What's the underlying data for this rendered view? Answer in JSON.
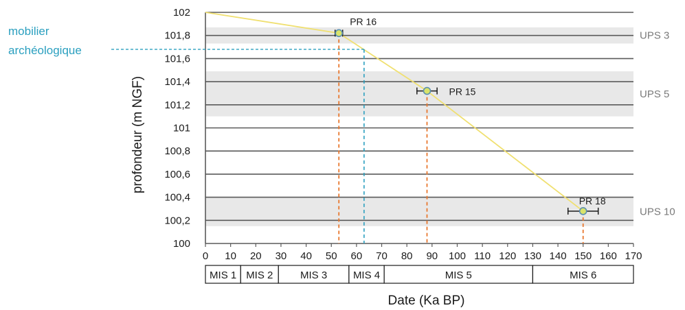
{
  "chart_data": {
    "type": "scatter",
    "title": "",
    "xlabel": "Date (Ka BP)",
    "ylabel": "profondeur (m NGF)",
    "xlim": [
      0,
      170
    ],
    "ylim": [
      100,
      102
    ],
    "x_ticks": [
      "0",
      "10",
      "20",
      "30",
      "40",
      "50",
      "60",
      "70",
      "80",
      "90",
      "100",
      "110",
      "120",
      "130",
      "140",
      "150",
      "160",
      "170"
    ],
    "y_ticks": [
      "100",
      "100,2",
      "100,4",
      "100,6",
      "100,8",
      "101",
      "101,2",
      "101,4",
      "101,6",
      "101,8",
      "102"
    ],
    "grid": "horizontal",
    "points": [
      {
        "label": "PR 16",
        "x": 53,
        "y": 101.82,
        "xerr": 1.5
      },
      {
        "label": "PR 15",
        "x": 88,
        "y": 101.32,
        "xerr": 4
      },
      {
        "label": "PR 18",
        "x": 150,
        "y": 100.28,
        "xerr": 6
      }
    ],
    "age_model_line": [
      {
        "x": 0,
        "y": 102
      },
      {
        "x": 53,
        "y": 101.82
      },
      {
        "x": 88,
        "y": 101.32
      },
      {
        "x": 150,
        "y": 100.28
      }
    ],
    "ups_bands": [
      {
        "label": "UPS 3",
        "y_from": 101.73,
        "y_to": 101.87
      },
      {
        "label": "UPS 5",
        "y_from": 101.1,
        "y_to": 101.49
      },
      {
        "label": "UPS 10",
        "y_from": 100.15,
        "y_to": 100.4
      }
    ],
    "mis_stages": [
      {
        "label": "MIS 1",
        "from": 0,
        "to": 14
      },
      {
        "label": "MIS 2",
        "from": 14,
        "to": 29
      },
      {
        "label": "MIS 3",
        "from": 29,
        "to": 57
      },
      {
        "label": "MIS 4",
        "from": 57,
        "to": 71
      },
      {
        "label": "MIS 5",
        "from": 71,
        "to": 130
      },
      {
        "label": "MIS 6",
        "from": 130,
        "to": 170
      }
    ],
    "annotation": {
      "text_line1": "mobilier",
      "text_line2": "archéologique",
      "x": 63,
      "y": 101.68
    },
    "colors": {
      "line": "#f0e070",
      "point_fill": "#d9e36a",
      "point_stroke": "#5a8fb0",
      "drop_lines": "#e8772e",
      "annotation": "#2a9fbf",
      "bands": "#e8e8e8",
      "grid": "#5a5a5a",
      "ups_text": "#7a7a7a"
    }
  }
}
